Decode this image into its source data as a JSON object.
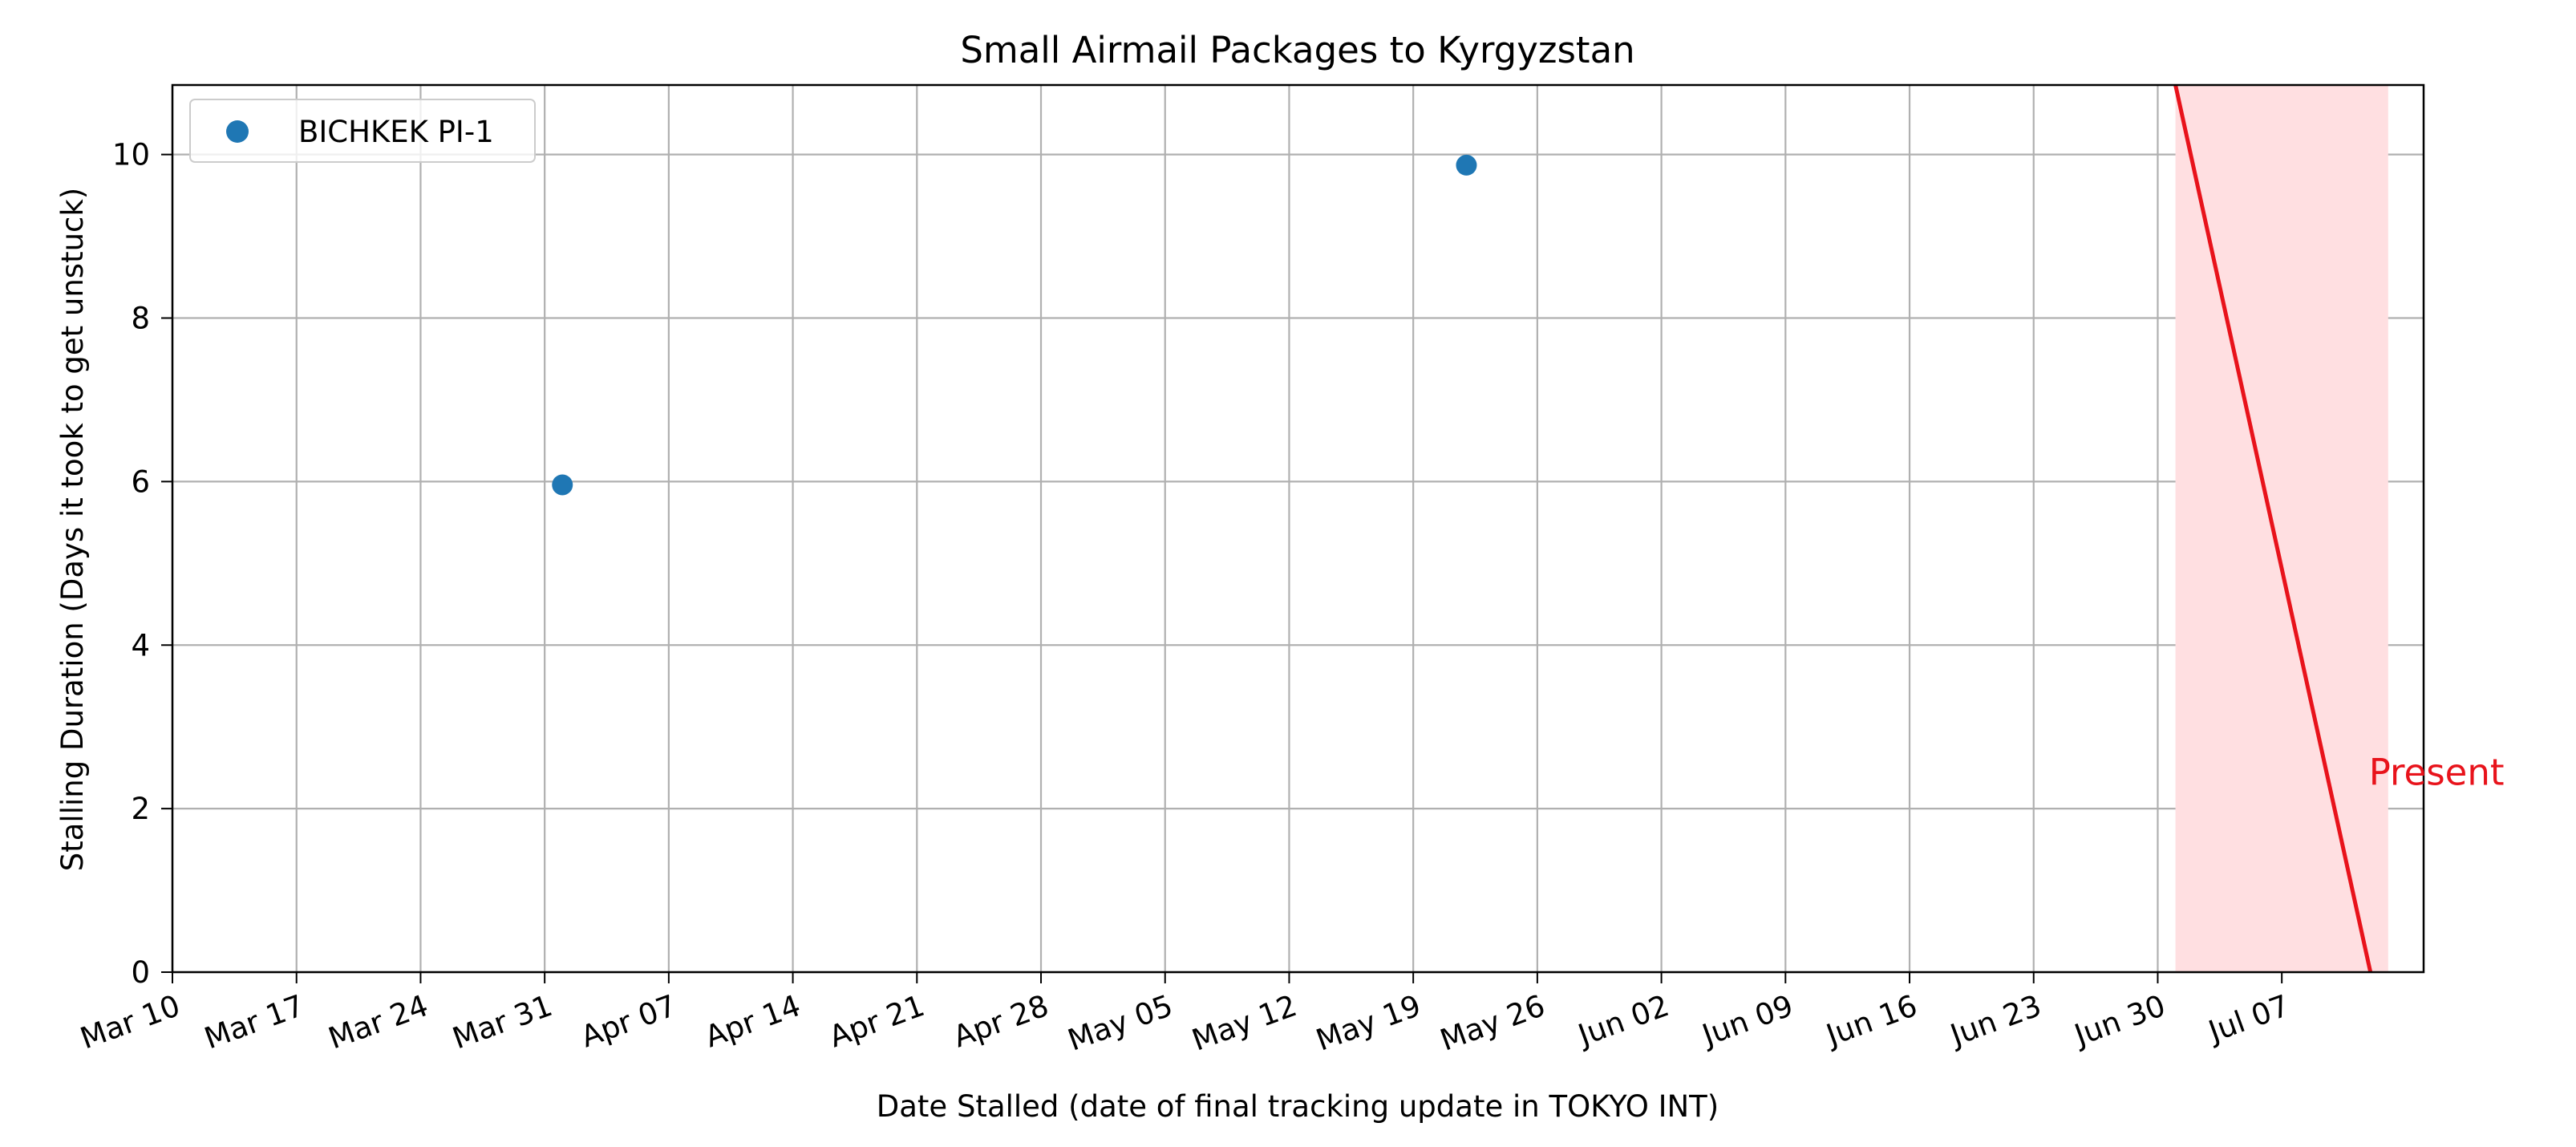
{
  "chart_data": {
    "type": "scatter",
    "title": "Small Airmail Packages to Kyrgyzstan",
    "xlabel": "Date Stalled (date of final tracking update in TOKYO INT)",
    "ylabel": "Stalling Duration (Days it took to get unstuck)",
    "x_axis": {
      "type": "date",
      "range": [
        "2024-03-10",
        "2024-07-15"
      ],
      "ticks": [
        {
          "date": "2024-03-10",
          "label": "Mar 10"
        },
        {
          "date": "2024-03-17",
          "label": "Mar 17"
        },
        {
          "date": "2024-03-24",
          "label": "Mar 24"
        },
        {
          "date": "2024-03-31",
          "label": "Mar 31"
        },
        {
          "date": "2024-04-07",
          "label": "Apr 07"
        },
        {
          "date": "2024-04-14",
          "label": "Apr 14"
        },
        {
          "date": "2024-04-21",
          "label": "Apr 21"
        },
        {
          "date": "2024-04-28",
          "label": "Apr 28"
        },
        {
          "date": "2024-05-05",
          "label": "May 05"
        },
        {
          "date": "2024-05-12",
          "label": "May 12"
        },
        {
          "date": "2024-05-19",
          "label": "May 19"
        },
        {
          "date": "2024-05-26",
          "label": "May 26"
        },
        {
          "date": "2024-06-02",
          "label": "Jun 02"
        },
        {
          "date": "2024-06-09",
          "label": "Jun 09"
        },
        {
          "date": "2024-06-16",
          "label": "Jun 16"
        },
        {
          "date": "2024-06-23",
          "label": "Jun 23"
        },
        {
          "date": "2024-06-30",
          "label": "Jun 30"
        },
        {
          "date": "2024-07-07",
          "label": "Jul 07"
        }
      ]
    },
    "y_axis": {
      "range": [
        0,
        10.85
      ],
      "ticks": [
        0,
        2,
        4,
        6,
        8,
        10
      ]
    },
    "grid": true,
    "legend": {
      "position": "top-left",
      "entries": [
        "BICHKEK PI-1"
      ]
    },
    "series": [
      {
        "name": "BICHKEK PI-1",
        "color": "#1f77b4",
        "points": [
          {
            "date": "2024-04-01",
            "y": 5.96
          },
          {
            "date": "2024-05-22",
            "y": 9.87
          }
        ]
      }
    ],
    "present_region": {
      "label": "Present",
      "color": "#e8131b",
      "fill_color": "#ffdfe1",
      "fill_range": [
        "2024-07-01",
        "2024-07-13"
      ],
      "line": [
        {
          "date": "2024-07-01",
          "y": 10.85
        },
        {
          "date": "2024-07-12",
          "y": 0
        }
      ],
      "label_date": "2024-07-12",
      "label_y": 2.45
    }
  }
}
